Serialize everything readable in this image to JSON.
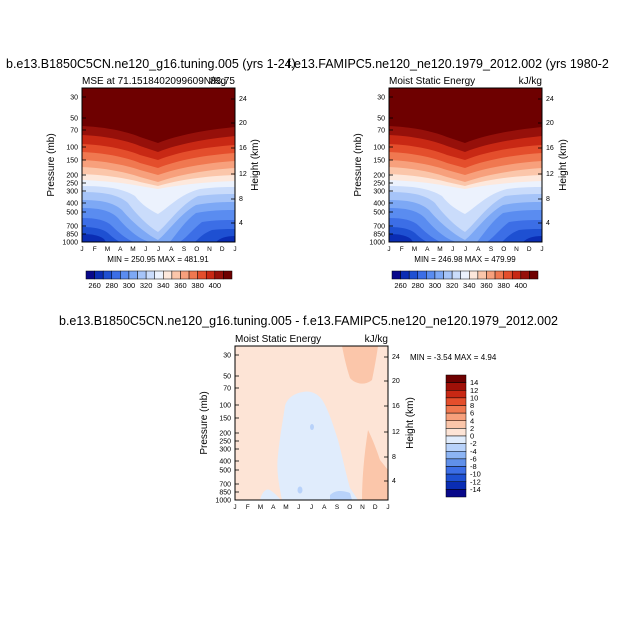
{
  "panels": [
    {
      "title": "b.e13.B1850C5CN.ne120_g16.tuning.005 (yrs 1-24)",
      "left_label": "MSE at 71.1518402099609N/Kg",
      "right_label": "83.75",
      "minmax": "MIN = 250.95   MAX = 481.91"
    },
    {
      "title": "f.e13.FAMIPC5.ne120_ne120.1979_2012.002 (yrs 1980-2",
      "left_label": "Moist Static Energy",
      "right_label": "kJ/kg",
      "minmax": "MIN = 246.98   MAX = 479.99"
    },
    {
      "title": "b.e13.B1850C5CN.ne120_g16.tuning.005  -  f.e13.FAMIPC5.ne120_ne120.1979_2012.002",
      "left_label": "Moist Static Energy",
      "right_label": "kJ/kg",
      "minmax": "MIN =   -3.54  MAX =    4.94"
    }
  ],
  "axes": {
    "ylabel": "Pressure (mb)",
    "ylabel_right": "Height (km)"
  },
  "colorbars": {
    "mse_labels": [
      "260",
      "280",
      "300",
      "320",
      "340",
      "360",
      "380",
      "400"
    ],
    "diff_labels": [
      "14",
      "12",
      "10",
      "8",
      "6",
      "4",
      "2",
      "0",
      "-2",
      "-4",
      "-6",
      "-8",
      "-10",
      "-12",
      "-14"
    ],
    "mse_colors": [
      "#08088a",
      "#0a2db4",
      "#1e50d2",
      "#3c6ee6",
      "#5a8cf0",
      "#7da8f5",
      "#a6c4f8",
      "#cadcfb",
      "#ecf2fd",
      "#fde8dc",
      "#fbc6aa",
      "#f7a07c",
      "#f07850",
      "#e44e2c",
      "#c82814",
      "#96100a",
      "#6e0000"
    ],
    "diff_colors": [
      "#6e0000",
      "#a01008",
      "#c82814",
      "#e44e2c",
      "#f07850",
      "#f7a07c",
      "#fbc6aa",
      "#fde4d6",
      "#e0ecfc",
      "#b8d2fa",
      "#8cb4f4",
      "#6090ea",
      "#3c6ee6",
      "#1e50d2",
      "#0a2db4",
      "#08088a"
    ]
  },
  "chart_data": [
    {
      "type": "heatmap",
      "title": "b.e13.B1850C5CN.ne120_g16.tuning.005 (yrs 1-24)",
      "xlabel": "",
      "ylabel": "Pressure (mb)",
      "ylabel_right": "Height (km)",
      "x": [
        "J",
        "F",
        "M",
        "A",
        "M",
        "J",
        "J",
        "A",
        "S",
        "O",
        "N",
        "D",
        "J"
      ],
      "y_ticks": [
        30,
        50,
        70,
        100,
        150,
        200,
        250,
        300,
        400,
        500,
        700,
        850,
        1000
      ],
      "y_right_ticks": [
        4,
        8,
        12,
        16,
        20,
        24
      ],
      "ylim": [
        1000,
        30
      ],
      "value_range": [
        250.95,
        481.91
      ],
      "units": "kJ/kg",
      "colorbar_levels": [
        260,
        270,
        280,
        290,
        300,
        310,
        320,
        330,
        340,
        350,
        360,
        370,
        380,
        390,
        400
      ]
    },
    {
      "type": "heatmap",
      "title": "f.e13.FAMIPC5.ne120_ne120.1979_2012.002 (yrs 1980-2",
      "xlabel": "",
      "ylabel": "Pressure (mb)",
      "ylabel_right": "Height (km)",
      "x": [
        "J",
        "F",
        "M",
        "A",
        "M",
        "J",
        "J",
        "A",
        "S",
        "O",
        "N",
        "D",
        "J"
      ],
      "y_ticks": [
        30,
        50,
        70,
        100,
        150,
        200,
        250,
        300,
        400,
        500,
        700,
        850,
        1000
      ],
      "y_right_ticks": [
        4,
        8,
        12,
        16,
        20,
        24
      ],
      "ylim": [
        1000,
        30
      ],
      "value_range": [
        246.98,
        479.99
      ],
      "units": "kJ/kg",
      "colorbar_levels": [
        260,
        270,
        280,
        290,
        300,
        310,
        320,
        330,
        340,
        350,
        360,
        370,
        380,
        390,
        400
      ]
    },
    {
      "type": "heatmap",
      "title": "b.e13.B1850C5CN.ne120_g16.tuning.005  -  f.e13.FAMIPC5.ne120_ne120.1979_2012.002",
      "xlabel": "",
      "ylabel": "Pressure (mb)",
      "ylabel_right": "Height (km)",
      "x": [
        "J",
        "F",
        "M",
        "A",
        "M",
        "J",
        "J",
        "A",
        "S",
        "O",
        "N",
        "D",
        "J"
      ],
      "y_ticks": [
        30,
        50,
        70,
        100,
        150,
        200,
        250,
        300,
        400,
        500,
        700,
        850,
        1000
      ],
      "y_right_ticks": [
        4,
        8,
        12,
        16,
        20,
        24
      ],
      "ylim": [
        1000,
        30
      ],
      "value_range": [
        -3.54,
        4.94
      ],
      "units": "kJ/kg",
      "colorbar_levels": [
        -14,
        -12,
        -10,
        -8,
        -6,
        -4,
        -2,
        0,
        2,
        4,
        6,
        8,
        10,
        12,
        14
      ]
    }
  ]
}
